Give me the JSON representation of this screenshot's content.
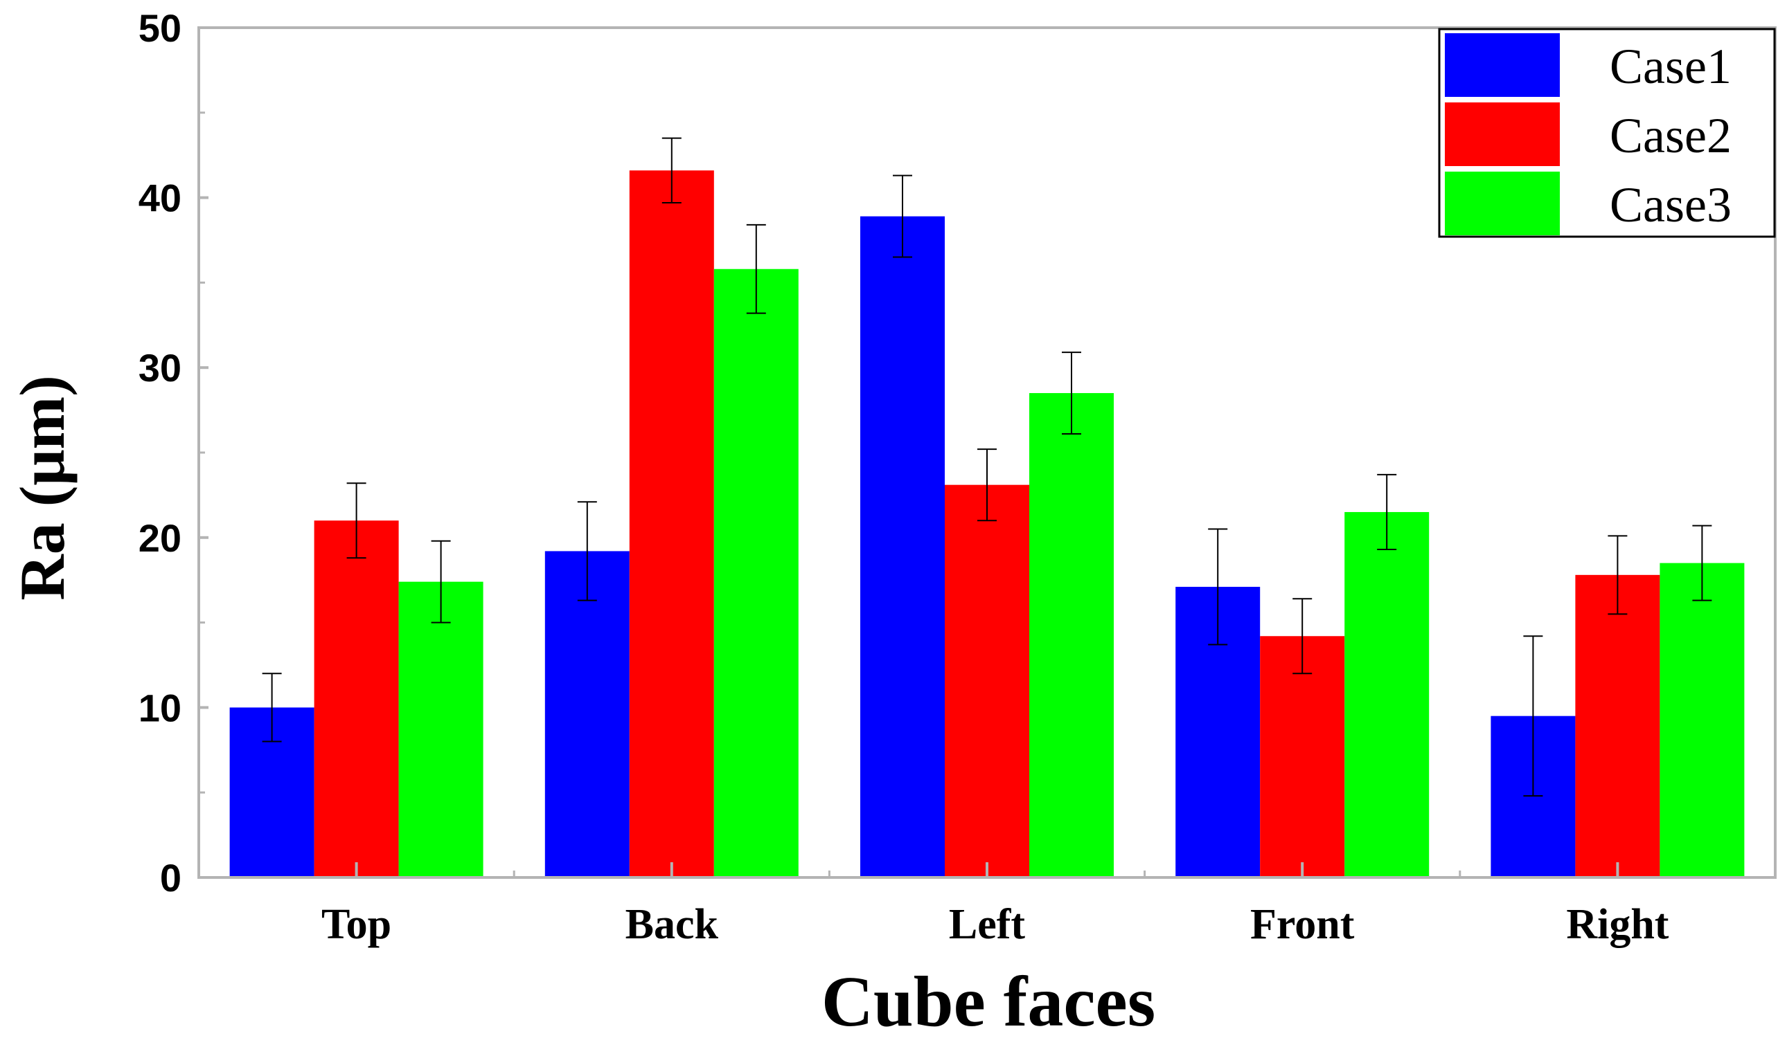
{
  "chart_data": {
    "type": "bar",
    "title": "",
    "xlabel": "Cube faces",
    "ylabel": "Ra (μm)",
    "ylim": [
      0,
      50
    ],
    "yticks": [
      "0",
      "10",
      "20",
      "30",
      "40",
      "50"
    ],
    "ytick_values": [
      0,
      10,
      20,
      30,
      40,
      50
    ],
    "categories": [
      "Top",
      "Back",
      "Left",
      "Front",
      "Right"
    ],
    "series": [
      {
        "name": "Case1",
        "color": "#0000ff",
        "values": [
          10.0,
          19.2,
          38.9,
          17.1,
          9.5
        ],
        "errors": [
          2.0,
          2.9,
          2.4,
          3.4,
          4.7
        ]
      },
      {
        "name": "Case2",
        "color": "#ff0000",
        "values": [
          21.0,
          41.6,
          23.1,
          14.2,
          17.8
        ],
        "errors": [
          2.2,
          1.9,
          2.1,
          2.2,
          2.3
        ]
      },
      {
        "name": "Case3",
        "color": "#00ff00",
        "values": [
          17.4,
          35.8,
          28.5,
          21.5,
          18.5
        ],
        "errors": [
          2.4,
          2.6,
          2.4,
          2.2,
          2.2
        ]
      }
    ],
    "grid": false,
    "legend_position": "top-right"
  }
}
